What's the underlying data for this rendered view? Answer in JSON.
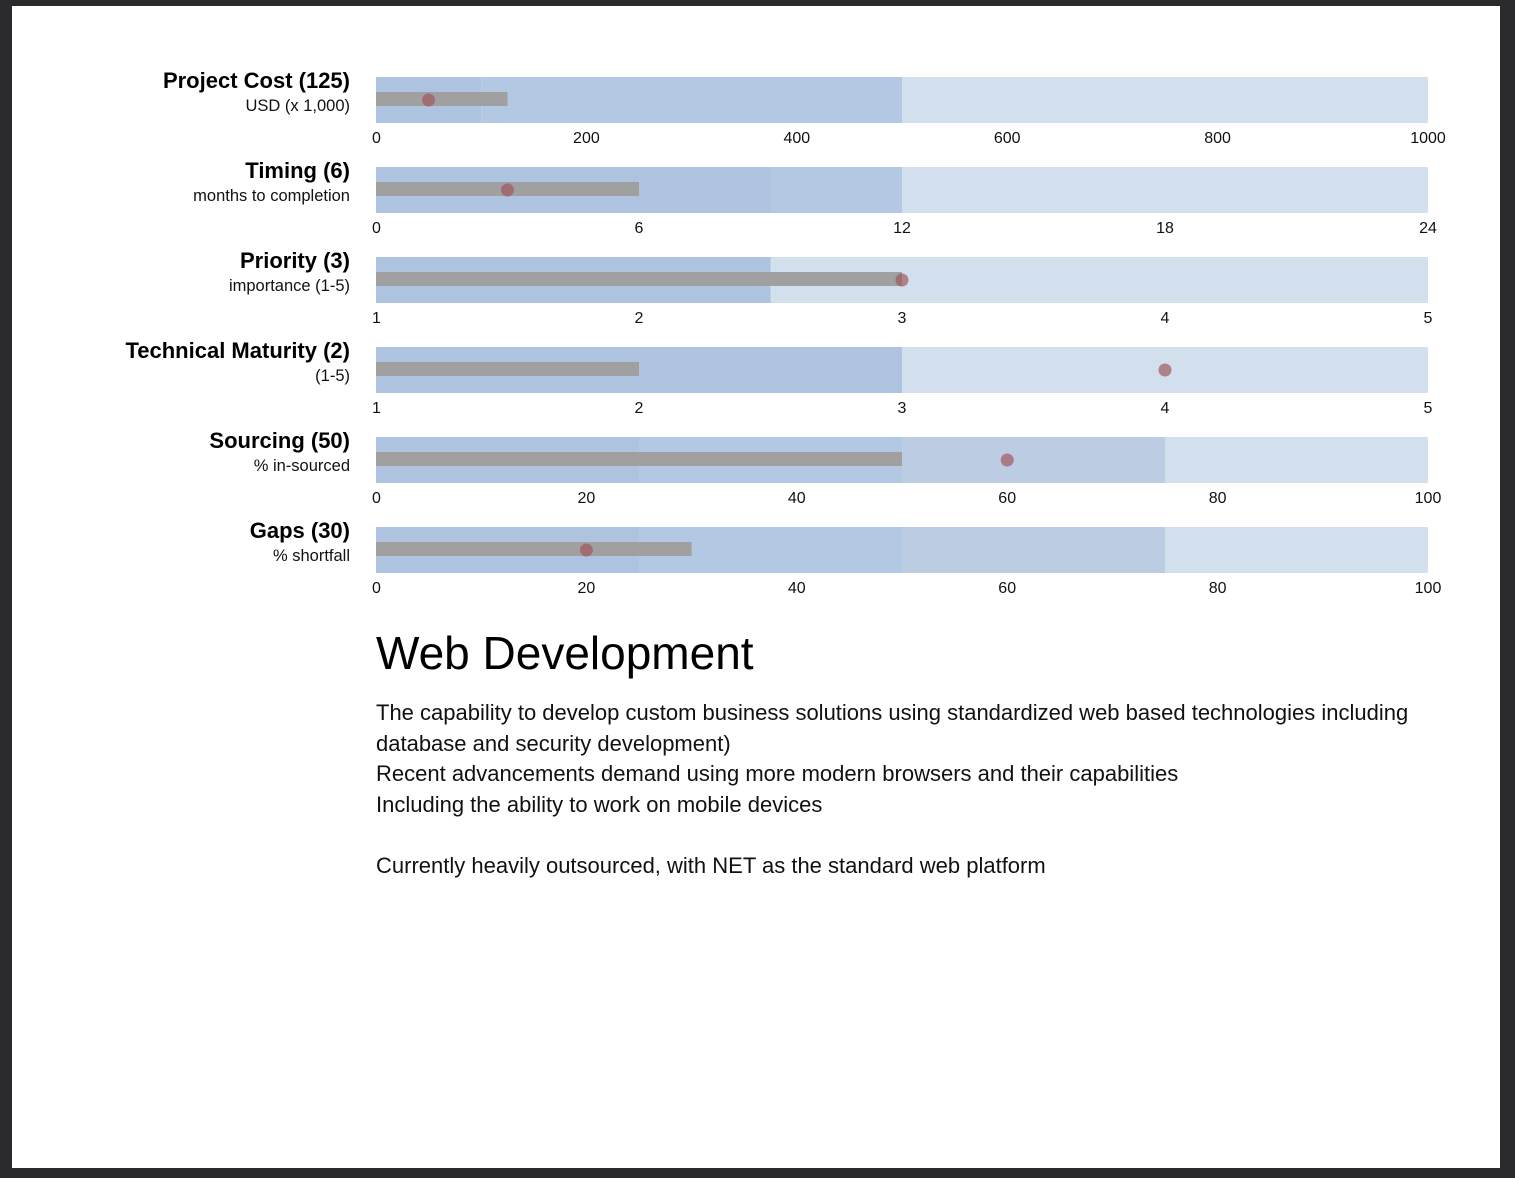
{
  "chart_data": [
    {
      "type": "bullet",
      "title": "Project Cost (125)",
      "subtitle": "USD (x 1,000)",
      "range": [
        0,
        1000
      ],
      "ticks": [
        0,
        200,
        400,
        600,
        800,
        1000
      ],
      "ranges": [
        100,
        500,
        1000
      ],
      "measure": 125,
      "marker": 50
    },
    {
      "type": "bullet",
      "title": "Timing (6)",
      "subtitle": "months to completion",
      "range": [
        0,
        24
      ],
      "ticks": [
        0,
        6,
        12,
        18,
        24
      ],
      "ranges": [
        9,
        12,
        24
      ],
      "measure": 6,
      "marker": 3
    },
    {
      "type": "bullet",
      "title": "Priority (3)",
      "subtitle": "importance (1-5)",
      "range": [
        1,
        5
      ],
      "ticks": [
        1,
        2,
        3,
        4,
        5
      ],
      "ranges": [
        2.5,
        5
      ],
      "measure": 3,
      "marker": 3
    },
    {
      "type": "bullet",
      "title": "Technical Maturity (2)",
      "subtitle": "(1-5)",
      "range": [
        1,
        5
      ],
      "ticks": [
        1,
        2,
        3,
        4,
        5
      ],
      "ranges": [
        3,
        5
      ],
      "measure": 2,
      "marker": 4
    },
    {
      "type": "bullet",
      "title": "Sourcing (50)",
      "subtitle": "% in-sourced",
      "range": [
        0,
        100
      ],
      "ticks": [
        0,
        20,
        40,
        60,
        80,
        100
      ],
      "ranges": [
        25,
        50,
        75,
        100
      ],
      "measure": 50,
      "marker": 60
    },
    {
      "type": "bullet",
      "title": "Gaps (30)",
      "subtitle": "% shortfall",
      "range": [
        0,
        100
      ],
      "ticks": [
        0,
        20,
        40,
        60,
        80,
        100
      ],
      "ranges": [
        25,
        50,
        75,
        100
      ],
      "measure": 30,
      "marker": 20
    }
  ],
  "colors": {
    "range_bands": [
      "#adc3e0",
      "#b3c8e2",
      "#bccde3",
      "#d2dfed"
    ],
    "measure_bar": "#a0a0a0",
    "marker": "#a0595e",
    "page_background": "#ffffff",
    "window_background": "#2b2b2e"
  },
  "description": {
    "heading": "Web Development",
    "paragraphs": [
      "The capability to develop custom business solutions using standardized web based technologies including database and security development)",
      "Recent advancements demand using more modern browsers and their capabilities",
      "Including the ability to work on mobile devices",
      "",
      "Currently heavily outsourced, with NET as the standard web platform"
    ]
  }
}
